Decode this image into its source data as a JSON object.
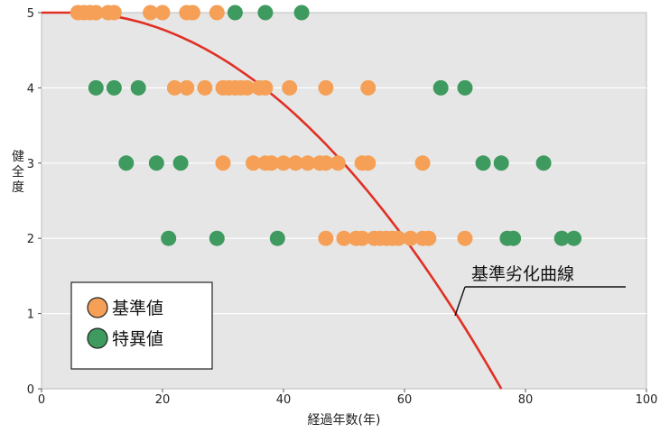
{
  "chart_data": {
    "type": "scatter",
    "xlabel": "経過年数(年)",
    "ylabel": "健全度",
    "xlim": [
      0,
      100
    ],
    "ylim": [
      0,
      5
    ],
    "x_ticks": [
      "0",
      "20",
      "40",
      "60",
      "80",
      "100"
    ],
    "y_ticks": [
      "0",
      "1",
      "2",
      "3",
      "4",
      "5"
    ],
    "grid": "horizontal",
    "legend": "bottom-left",
    "series": [
      {
        "name": "基準値",
        "color": "#f5a056",
        "points": [
          [
            6,
            5
          ],
          [
            7,
            5
          ],
          [
            8,
            5
          ],
          [
            9,
            5
          ],
          [
            11,
            5
          ],
          [
            12,
            5
          ],
          [
            18,
            5
          ],
          [
            20,
            5
          ],
          [
            24,
            5
          ],
          [
            25,
            5
          ],
          [
            29,
            5
          ],
          [
            22,
            4
          ],
          [
            24,
            4
          ],
          [
            27,
            4
          ],
          [
            30,
            4
          ],
          [
            31,
            4
          ],
          [
            32,
            4
          ],
          [
            33,
            4
          ],
          [
            34,
            4
          ],
          [
            36,
            4
          ],
          [
            37,
            4
          ],
          [
            41,
            4
          ],
          [
            47,
            4
          ],
          [
            54,
            4
          ],
          [
            30,
            3
          ],
          [
            35,
            3
          ],
          [
            37,
            3
          ],
          [
            38,
            3
          ],
          [
            40,
            3
          ],
          [
            42,
            3
          ],
          [
            44,
            3
          ],
          [
            46,
            3
          ],
          [
            47,
            3
          ],
          [
            49,
            3
          ],
          [
            53,
            3
          ],
          [
            54,
            3
          ],
          [
            63,
            3
          ],
          [
            47,
            2
          ],
          [
            50,
            2
          ],
          [
            52,
            2
          ],
          [
            53,
            2
          ],
          [
            55,
            2
          ],
          [
            56,
            2
          ],
          [
            57,
            2
          ],
          [
            58,
            2
          ],
          [
            59,
            2
          ],
          [
            61,
            2
          ],
          [
            63,
            2
          ],
          [
            64,
            2
          ],
          [
            70,
            2
          ]
        ]
      },
      {
        "name": "特異値",
        "color": "#3e9a5e",
        "points": [
          [
            32,
            5
          ],
          [
            37,
            5
          ],
          [
            43,
            5
          ],
          [
            9,
            4
          ],
          [
            12,
            4
          ],
          [
            16,
            4
          ],
          [
            66,
            4
          ],
          [
            70,
            4
          ],
          [
            14,
            3
          ],
          [
            19,
            3
          ],
          [
            23,
            3
          ],
          [
            73,
            3
          ],
          [
            76,
            3
          ],
          [
            83,
            3
          ],
          [
            21,
            2
          ],
          [
            29,
            2
          ],
          [
            39,
            2
          ],
          [
            77,
            2
          ],
          [
            78,
            2
          ],
          [
            86,
            2
          ],
          [
            88,
            2
          ]
        ]
      }
    ],
    "curve": {
      "name": "基準劣化曲線",
      "color": "#e03024",
      "description_points": [
        [
          0,
          5
        ],
        [
          5,
          5
        ],
        [
          20,
          4.6
        ],
        [
          40,
          3.4
        ],
        [
          60,
          1.8
        ],
        [
          68,
          0.9
        ],
        [
          76,
          0
        ]
      ]
    }
  },
  "legend_items": [
    {
      "label": "基準値",
      "color": "#f5a056"
    },
    {
      "label": "特異値",
      "color": "#3e9a5e"
    }
  ]
}
